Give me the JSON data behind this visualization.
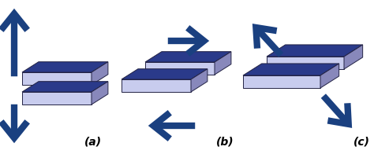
{
  "figsize": [
    4.74,
    1.96
  ],
  "dpi": 100,
  "bg_color": "#ffffff",
  "face_color": "#c8ccee",
  "side_color": "#8888bb",
  "top_color": "#2a3a8a",
  "arrow_color": "#1a4080",
  "label_color": "#000000",
  "labels": [
    "(a)",
    "(b)",
    "(c)"
  ],
  "label_fontsize": 10
}
